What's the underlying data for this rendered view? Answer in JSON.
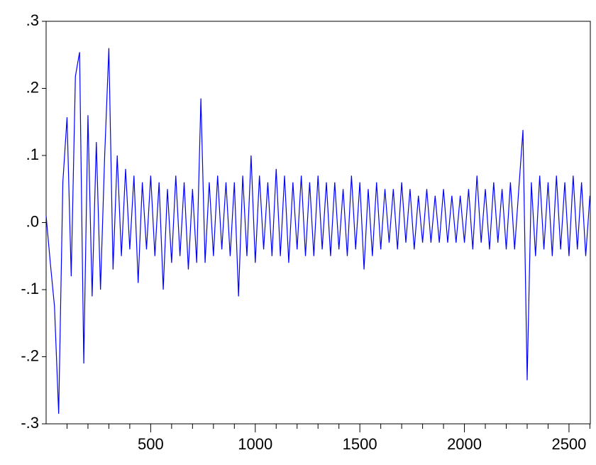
{
  "chart_data": {
    "type": "line",
    "x": [
      0,
      20,
      40,
      60,
      80,
      100,
      120,
      140,
      160,
      180,
      200,
      220,
      240,
      260,
      280,
      300,
      320,
      340,
      360,
      380,
      400,
      420,
      440,
      460,
      480,
      500,
      520,
      540,
      560,
      580,
      600,
      620,
      640,
      660,
      680,
      700,
      720,
      740,
      760,
      780,
      800,
      820,
      840,
      860,
      880,
      900,
      920,
      940,
      960,
      980,
      1000,
      1020,
      1040,
      1060,
      1080,
      1100,
      1120,
      1140,
      1160,
      1180,
      1200,
      1220,
      1240,
      1260,
      1280,
      1300,
      1320,
      1340,
      1360,
      1380,
      1400,
      1420,
      1440,
      1460,
      1480,
      1500,
      1520,
      1540,
      1560,
      1580,
      1600,
      1620,
      1640,
      1660,
      1680,
      1700,
      1720,
      1740,
      1760,
      1780,
      1800,
      1820,
      1840,
      1860,
      1880,
      1900,
      1920,
      1940,
      1960,
      1980,
      2000,
      2020,
      2040,
      2060,
      2080,
      2100,
      2120,
      2140,
      2160,
      2180,
      2200,
      2220,
      2240,
      2260,
      2280,
      2300,
      2320,
      2340,
      2360,
      2380,
      2400,
      2420,
      2440,
      2460,
      2480,
      2500,
      2520,
      2540,
      2560,
      2580,
      2600
    ],
    "series": [
      {
        "color": "#0000ff",
        "values": [
          0.01,
          -0.06,
          -0.125,
          -0.285,
          0.06,
          0.157,
          -0.08,
          0.218,
          0.254,
          -0.21,
          0.16,
          -0.11,
          0.12,
          -0.1,
          0.1,
          0.26,
          -0.07,
          0.1,
          -0.05,
          0.08,
          -0.04,
          0.07,
          -0.09,
          0.06,
          -0.04,
          0.07,
          -0.05,
          0.06,
          -0.1,
          0.05,
          -0.06,
          0.07,
          -0.05,
          0.06,
          -0.07,
          0.05,
          -0.06,
          0.185,
          -0.06,
          0.06,
          -0.05,
          0.07,
          -0.04,
          0.06,
          -0.05,
          0.06,
          -0.11,
          0.07,
          -0.05,
          0.1,
          -0.06,
          0.07,
          -0.04,
          0.06,
          -0.05,
          0.08,
          -0.05,
          0.07,
          -0.06,
          0.06,
          -0.04,
          0.07,
          -0.05,
          0.06,
          -0.05,
          0.07,
          -0.04,
          0.06,
          -0.05,
          0.06,
          -0.04,
          0.05,
          -0.05,
          0.07,
          -0.04,
          0.06,
          -0.07,
          0.05,
          -0.05,
          0.06,
          -0.04,
          0.05,
          -0.03,
          0.05,
          -0.04,
          0.06,
          -0.03,
          0.05,
          -0.04,
          0.04,
          -0.03,
          0.05,
          -0.03,
          0.04,
          -0.03,
          0.05,
          -0.03,
          0.04,
          -0.03,
          0.04,
          -0.03,
          0.05,
          -0.04,
          0.07,
          -0.03,
          0.05,
          -0.04,
          0.06,
          -0.03,
          0.05,
          -0.04,
          0.06,
          -0.04,
          0.05,
          0.138,
          -0.235,
          0.06,
          -0.05,
          0.07,
          -0.04,
          0.06,
          -0.05,
          0.07,
          -0.04,
          0.06,
          -0.05,
          0.07,
          -0.04,
          0.06,
          -0.05,
          0.04
        ]
      }
    ],
    "xlim": [
      0,
      2602
    ],
    "xticks": [
      500,
      1000,
      1500,
      2000,
      2500
    ],
    "xminorticks": [
      100,
      200,
      300,
      400,
      600,
      700,
      800,
      900,
      1100,
      1200,
      1300,
      1400,
      1600,
      1700,
      1800,
      1900,
      2100,
      2200,
      2300,
      2400,
      2600
    ],
    "ylim": [
      -0.3,
      0.3
    ],
    "yticks": [
      {
        "value": -0.3,
        "label": "-.3"
      },
      {
        "value": -0.2,
        "label": "-.2"
      },
      {
        "value": -0.1,
        "label": "-.1"
      },
      {
        "value": 0,
        "label": ".0"
      },
      {
        "value": 0.1,
        "label": ".1"
      },
      {
        "value": 0.2,
        "label": ".2"
      },
      {
        "value": 0.3,
        "label": ".3"
      }
    ]
  }
}
